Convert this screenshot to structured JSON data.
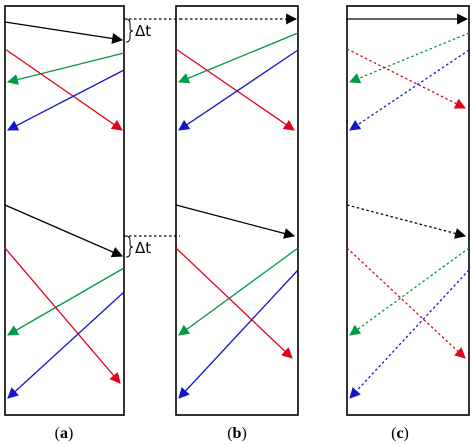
{
  "panel_labels": [
    {
      "open": "(",
      "letter": "a",
      "close": ")"
    },
    {
      "open": "(",
      "letter": "b",
      "close": ")"
    },
    {
      "open": "(",
      "letter": "c",
      "close": ")"
    }
  ],
  "delta_label": "Δt",
  "colors": {
    "black": "#000000",
    "green": "#009944",
    "red": "#e3001b",
    "blue": "#1515c8"
  }
}
